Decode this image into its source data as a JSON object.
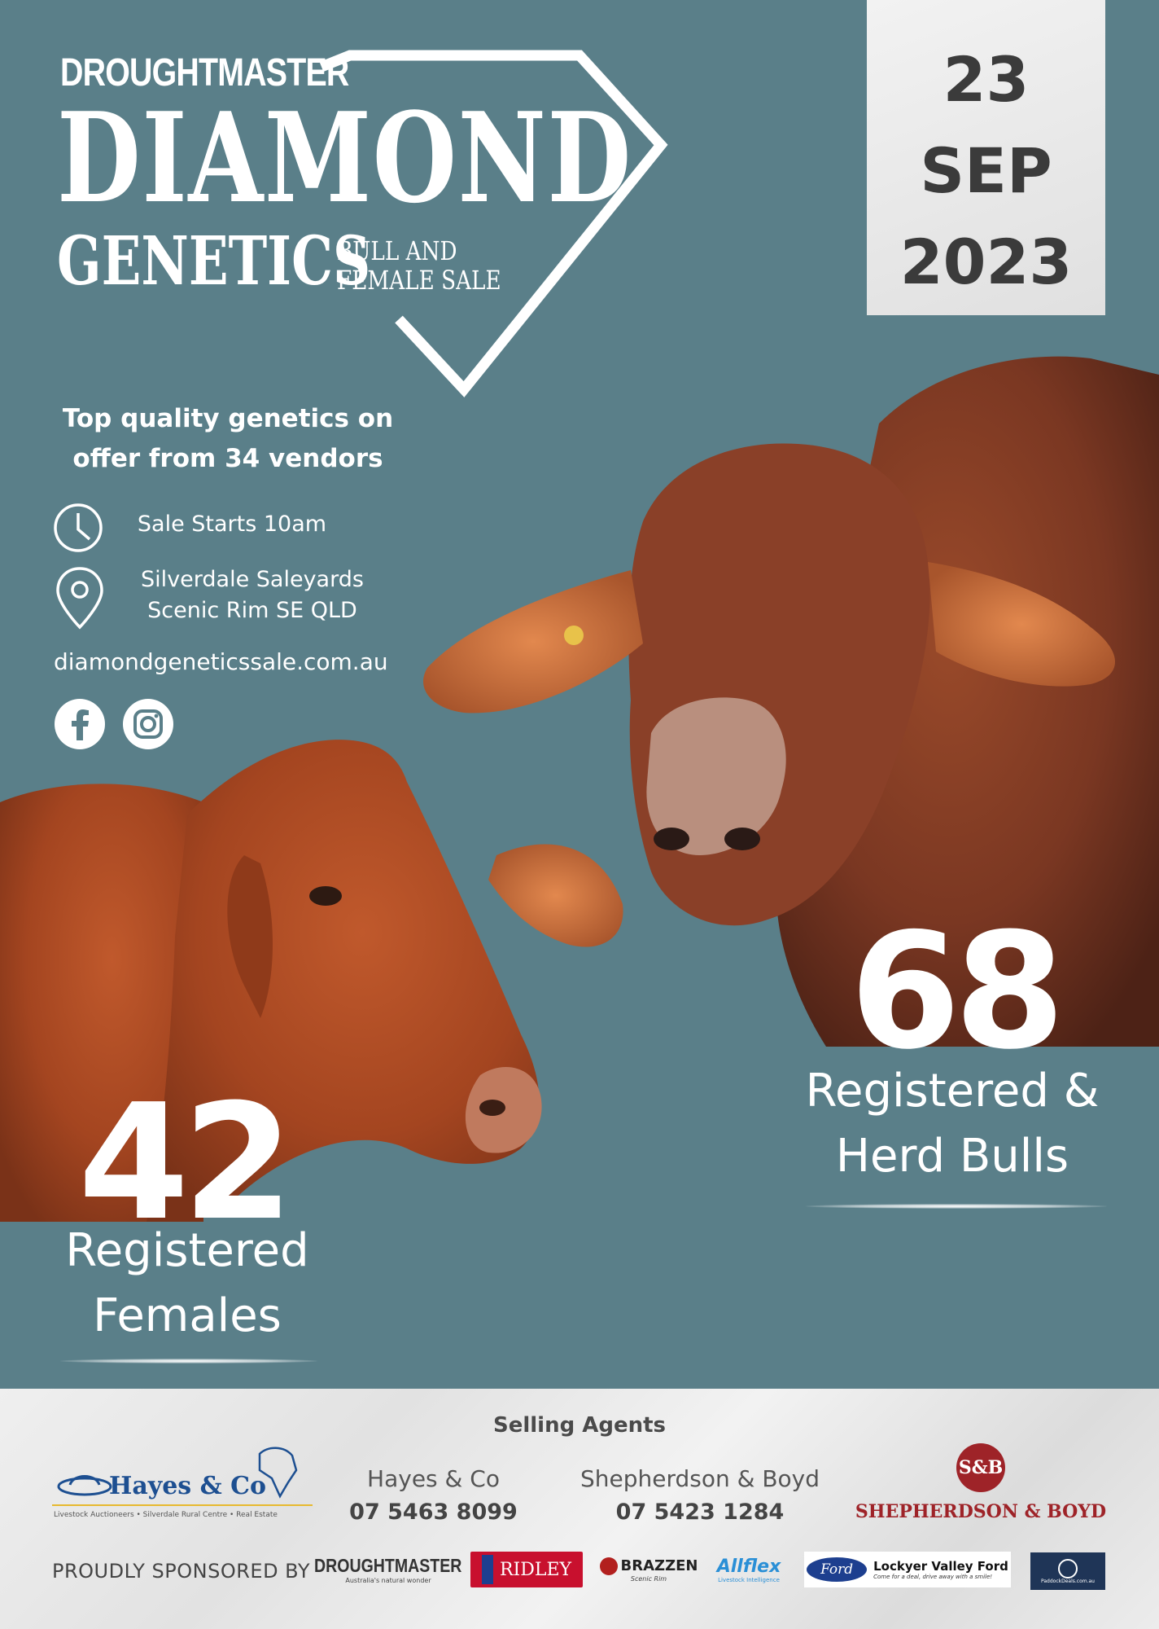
{
  "logo": {
    "small": "DROUGHTMASTER",
    "big": "DIAMOND",
    "genetics": "GENETICS",
    "sub1": "BULL AND",
    "sub2": "FEMALE SALE"
  },
  "date": {
    "day": "23",
    "month": "SEP",
    "year": "2023"
  },
  "tagline": {
    "line1": "Top quality genetics on",
    "line2": "offer from 34 vendors"
  },
  "info": {
    "time": "Sale Starts 10am",
    "location_line1": "Silverdale Saleyards",
    "location_line2": "Scenic Rim SE QLD",
    "website": "diamondgeneticssale.com.au"
  },
  "social": {
    "facebook_icon": "facebook-icon",
    "instagram_icon": "instagram-icon"
  },
  "stats": {
    "females": {
      "count": "42",
      "label1": "Registered",
      "label2": "Females"
    },
    "bulls": {
      "count": "68",
      "label1": "Registered &",
      "label2": "Herd Bulls"
    }
  },
  "footer": {
    "selling_title": "Selling Agents",
    "agent1": {
      "name": "Hayes & Co",
      "phone": "07 5463 8099"
    },
    "agent2": {
      "name": "Shepherdson & Boyd",
      "phone": "07 5423 1284"
    },
    "hayes_logo": {
      "name": "Hayes & Co",
      "tagline": "Livestock Auctioneers • Silverdale Rural Centre • Real Estate"
    },
    "sb_logo": {
      "initials": "S&B",
      "name": "SHEPHERDSON & BOYD"
    },
    "sponsored_by": "PROUDLY SPONSORED BY",
    "sponsors": {
      "droughtmaster": "DROUGHTMASTER",
      "droughtmaster_tag": "Australia's natural wonder",
      "ridley": "RIDLEY",
      "brazzen": "BRAZZEN",
      "brazzen_tag": "Scenic Rim",
      "allflex": "Allflex",
      "allflex_tag": "Livestock Intelligence",
      "ford": "Ford",
      "lockyer": "Lockyer Valley Ford",
      "lockyer_tag": "Come for a deal, drive away with a smile!",
      "paddock": "PaddockDeals.com.au"
    }
  },
  "colors": {
    "background": "#5a7f89",
    "cattle": "#a34d26",
    "sb_red": "#9e2328",
    "hayes_blue": "#1d4f91"
  }
}
